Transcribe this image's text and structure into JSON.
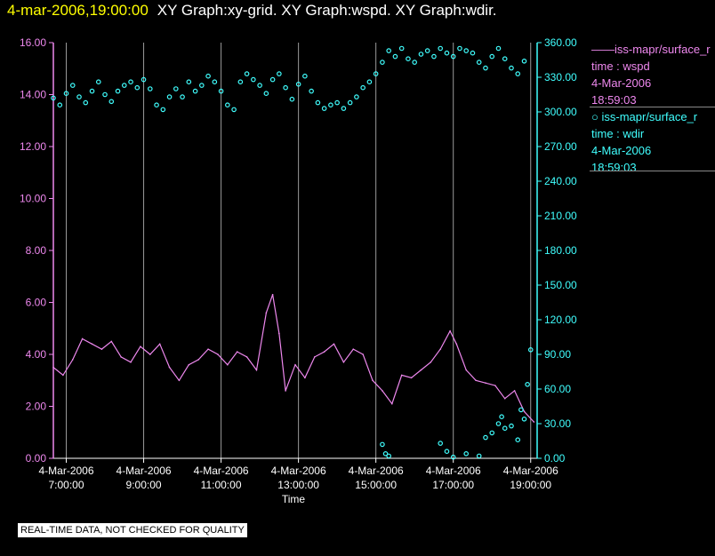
{
  "header": {
    "time": "4-mar-2006,19:00:00",
    "graphs": "XY Graph:xy-grid.  XY Graph:wspd.  XY Graph:wdir."
  },
  "legend": [
    {
      "marker": "——",
      "name": "iss-mapr/surface_r",
      "field": "time : wspd",
      "date": "4-Mar-2006",
      "time": "18:59:03",
      "color": "#ee88ee"
    },
    {
      "marker": "○",
      "name": "iss-mapr/surface_r",
      "field": "time : wdir",
      "date": "4-Mar-2006",
      "time": "18:59:03",
      "color": "#40ffff"
    }
  ],
  "footer_note": "REAL-TIME DATA, NOT CHECKED FOR QUALITY",
  "chart_data": {
    "type": "line",
    "xlabel": "Time",
    "x_range": [
      "4-Mar-2006 06:40",
      "4-Mar-2006 19:10"
    ],
    "x_ticks": [
      {
        "x": "07:00",
        "date": "4-Mar-2006",
        "time": "7:00:00"
      },
      {
        "x": "09:00",
        "date": "4-Mar-2006",
        "time": "9:00:00"
      },
      {
        "x": "11:00",
        "date": "4-Mar-2006",
        "time": "11:00:00"
      },
      {
        "x": "13:00",
        "date": "4-Mar-2006",
        "time": "13:00:00"
      },
      {
        "x": "15:00",
        "date": "4-Mar-2006",
        "time": "15:00:00"
      },
      {
        "x": "17:00",
        "date": "4-Mar-2006",
        "time": "17:00:00"
      },
      {
        "x": "19:00",
        "date": "4-Mar-2006",
        "time": "19:00:00"
      }
    ],
    "y_left": {
      "ylim": [
        0,
        16
      ],
      "ticks": [
        "0.00",
        "2.00",
        "4.00",
        "6.00",
        "8.00",
        "10.00",
        "12.00",
        "14.00",
        "16.00"
      ],
      "color": "#ee88ee"
    },
    "y_right": {
      "ylim": [
        0,
        360
      ],
      "ticks": [
        "0.00",
        "30.00",
        "60.00",
        "90.00",
        "120.00",
        "150.00",
        "180.00",
        "210.00",
        "240.00",
        "270.00",
        "300.00",
        "330.00",
        "360.00"
      ],
      "color": "#40ffff"
    },
    "grid": "vertical",
    "series": [
      {
        "axis": "left",
        "style": "line",
        "color": "#ee88ee",
        "x": [
          "06:40",
          "06:55",
          "07:10",
          "07:25",
          "07:40",
          "07:55",
          "08:10",
          "08:25",
          "08:40",
          "08:55",
          "09:10",
          "09:25",
          "09:40",
          "09:55",
          "10:10",
          "10:25",
          "10:40",
          "10:55",
          "11:10",
          "11:25",
          "11:40",
          "11:55",
          "12:10",
          "12:20",
          "12:30",
          "12:40",
          "12:55",
          "13:10",
          "13:25",
          "13:40",
          "13:55",
          "14:10",
          "14:25",
          "14:40",
          "14:55",
          "15:10",
          "15:25",
          "15:40",
          "15:55",
          "16:10",
          "16:25",
          "16:40",
          "16:55",
          "17:05",
          "17:20",
          "17:35",
          "17:50",
          "18:05",
          "18:20",
          "18:35",
          "18:50",
          "19:05"
        ],
        "y": [
          3.5,
          3.2,
          3.8,
          4.6,
          4.4,
          4.2,
          4.5,
          3.9,
          3.7,
          4.3,
          4.0,
          4.4,
          3.5,
          3.0,
          3.6,
          3.8,
          4.2,
          4.0,
          3.6,
          4.1,
          3.9,
          3.4,
          5.6,
          6.3,
          4.8,
          2.6,
          3.6,
          3.1,
          3.9,
          4.1,
          4.4,
          3.7,
          4.2,
          4.0,
          3.0,
          2.6,
          2.1,
          3.2,
          3.1,
          3.4,
          3.7,
          4.2,
          4.9,
          4.4,
          3.4,
          3.0,
          2.9,
          2.8,
          2.3,
          2.6,
          1.8,
          1.4
        ]
      },
      {
        "axis": "right",
        "style": "points",
        "color": "#40ffff",
        "x": [
          "06:40",
          "06:50",
          "07:00",
          "07:10",
          "07:20",
          "07:30",
          "07:40",
          "07:50",
          "08:00",
          "08:10",
          "08:20",
          "08:30",
          "08:40",
          "08:50",
          "09:00",
          "09:10",
          "09:20",
          "09:30",
          "09:40",
          "09:50",
          "10:00",
          "10:10",
          "10:20",
          "10:30",
          "10:40",
          "10:50",
          "11:00",
          "11:10",
          "11:20",
          "11:30",
          "11:40",
          "11:50",
          "12:00",
          "12:10",
          "12:20",
          "12:30",
          "12:40",
          "12:50",
          "13:00",
          "13:10",
          "13:20",
          "13:30",
          "13:40",
          "13:50",
          "14:00",
          "14:10",
          "14:20",
          "14:30",
          "14:40",
          "14:50",
          "15:00",
          "15:10",
          "15:20",
          "15:30",
          "15:40",
          "15:50",
          "16:00",
          "16:10",
          "16:20",
          "16:30",
          "16:40",
          "16:50",
          "17:00",
          "17:10",
          "17:20",
          "17:30",
          "17:40",
          "17:50",
          "18:00",
          "18:10",
          "18:20",
          "18:30",
          "18:40",
          "18:50"
        ],
        "y": [
          312,
          306,
          316,
          323,
          313,
          308,
          318,
          326,
          315,
          309,
          318,
          323,
          326,
          321,
          328,
          320,
          306,
          302,
          313,
          320,
          313,
          326,
          318,
          323,
          331,
          326,
          318,
          306,
          302,
          326,
          333,
          328,
          323,
          316,
          328,
          333,
          321,
          311,
          324,
          331,
          318,
          308,
          303,
          306,
          308,
          303,
          308,
          313,
          321,
          326,
          333,
          343,
          353,
          348,
          355,
          346,
          343,
          350,
          353,
          348,
          355,
          351,
          348,
          355,
          353,
          351,
          343,
          338,
          348,
          355,
          346,
          338,
          333,
          344
        ]
      },
      {
        "axis": "right",
        "style": "points",
        "color": "#40ffff",
        "x": [
          "15:10",
          "15:15",
          "15:20",
          "16:40",
          "16:50",
          "17:00",
          "17:20",
          "17:40",
          "17:50",
          "18:00",
          "18:10",
          "18:15",
          "18:20",
          "18:30",
          "18:40",
          "18:45",
          "18:50",
          "18:55",
          "19:00"
        ],
        "y": [
          12,
          4,
          2,
          13,
          6,
          1,
          4,
          2,
          18,
          22,
          30,
          36,
          26,
          28,
          16,
          42,
          34,
          64,
          94
        ]
      }
    ]
  }
}
